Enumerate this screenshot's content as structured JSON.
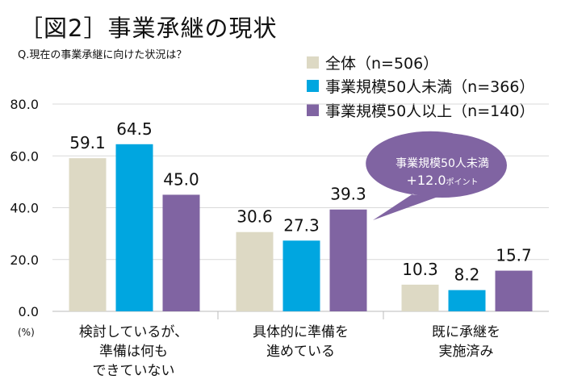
{
  "title": "［図2］事業承継の現状",
  "subtitle": "Q.現在の事業承継に向けた状況は？",
  "chart_data": {
    "type": "bar",
    "categories": [
      [
        "検討しているが、",
        "準備は何も",
        "できていない"
      ],
      [
        "具体的に準備を",
        "進めている"
      ],
      [
        "既に承継を",
        "実施済み"
      ]
    ],
    "series": [
      {
        "name": "全体（n=506）",
        "color": "#ddd9c4",
        "values": [
          59.1,
          30.6,
          10.3
        ]
      },
      {
        "name": "事業規模50人未満（n=366）",
        "color": "#00a6e0",
        "values": [
          64.5,
          27.3,
          8.2
        ]
      },
      {
        "name": "事業規模50人以上（n=140）",
        "color": "#8064a2",
        "values": [
          45.0,
          39.3,
          15.7
        ]
      }
    ],
    "ylim": [
      0,
      80
    ],
    "yticks": [
      "0.0",
      "20.0",
      "40.0",
      "60.0",
      "80.0"
    ],
    "yunit": "(%)",
    "grid": true,
    "legend": "top-right",
    "annotation": {
      "line1": "事業規模50人未満",
      "line2": "+12.0",
      "line2_suffix": "ポイント",
      "color": "#8064a2"
    }
  }
}
